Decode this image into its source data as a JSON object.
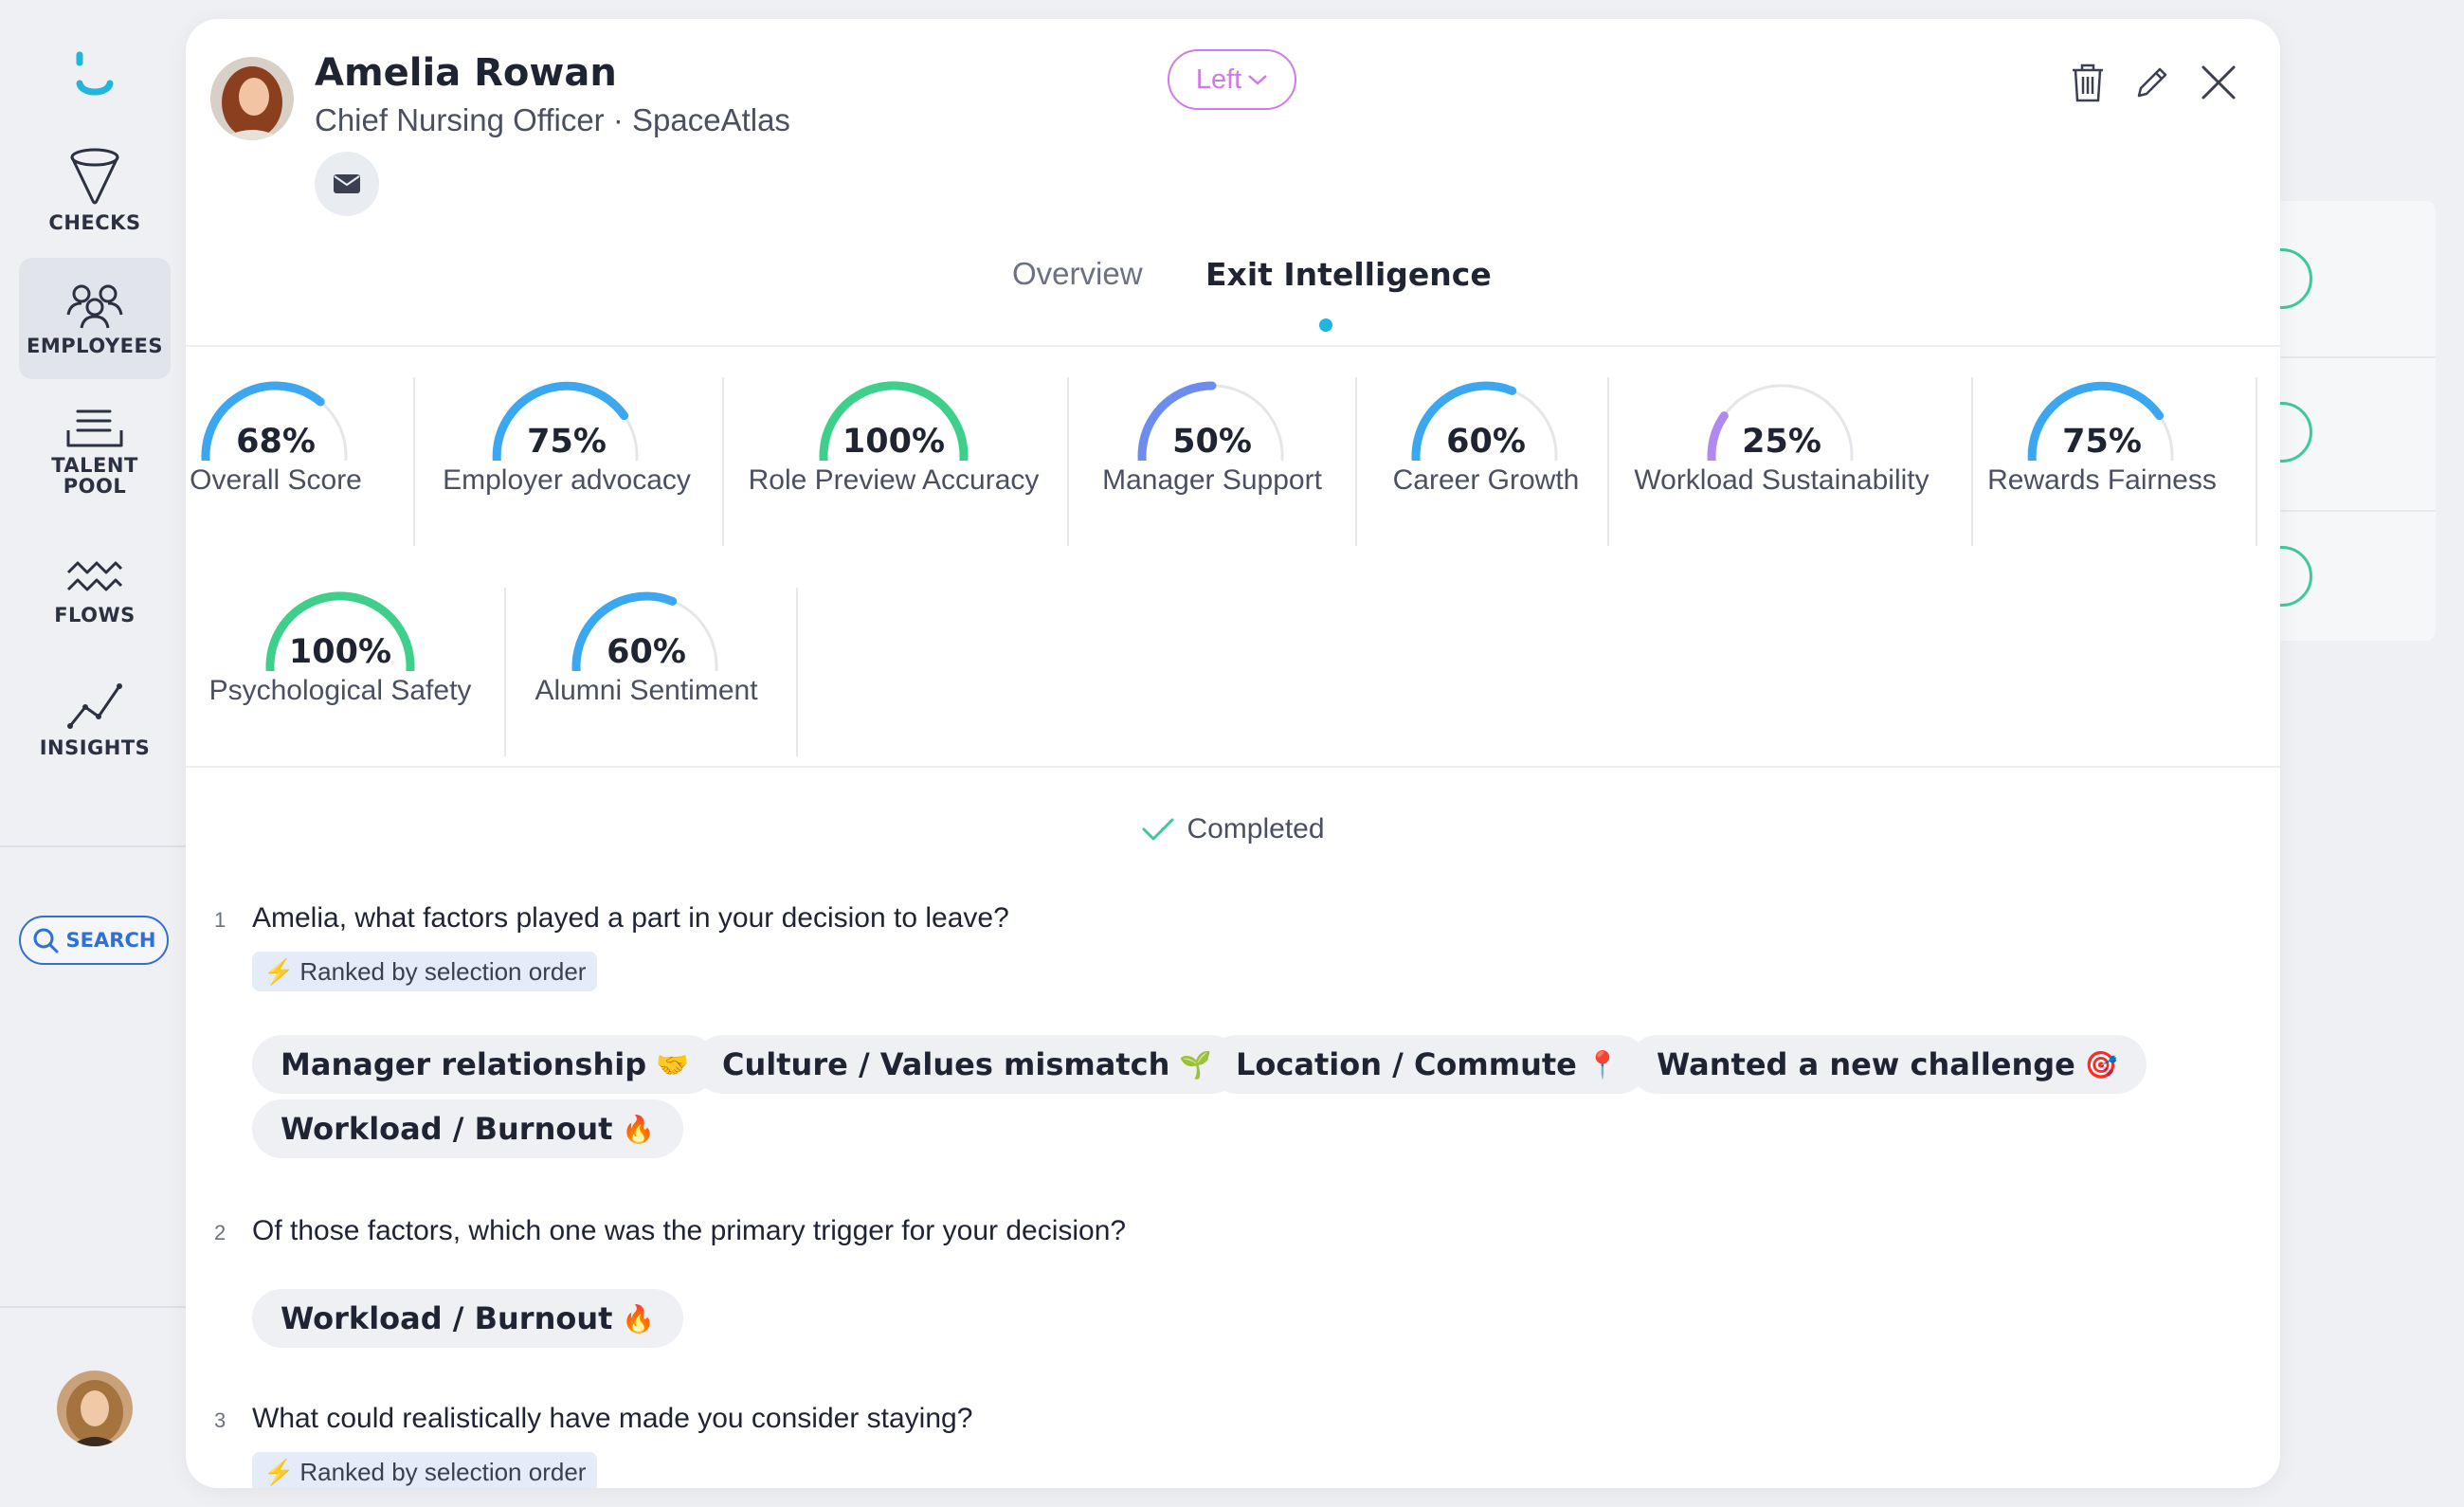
{
  "sidebar": {
    "items": [
      {
        "label": "CHECKS"
      },
      {
        "label": "EMPLOYEES"
      },
      {
        "label": "TALENT POOL"
      },
      {
        "label": "FLOWS"
      },
      {
        "label": "INSIGHTS"
      }
    ],
    "search_label": "SEARCH"
  },
  "profile": {
    "name": "Amelia Rowan",
    "subtitle": "Chief Nursing Officer · SpaceAtlas",
    "status": "Left"
  },
  "tabs": [
    {
      "label": "Overview"
    },
    {
      "label": "Exit Intelligence"
    }
  ],
  "scores": [
    {
      "value": "68%",
      "label": "Overall Score",
      "fraction": 0.68,
      "color": "#3aa7f0"
    },
    {
      "value": "75%",
      "label": "Employer advocacy",
      "fraction": 0.75,
      "color": "#3aa7f0"
    },
    {
      "value": "100%",
      "label": "Role Preview Accuracy",
      "fraction": 1.0,
      "color": "#3ed08a"
    },
    {
      "value": "50%",
      "label": "Manager Support",
      "fraction": 0.5,
      "color": "#6d8cf0"
    },
    {
      "value": "60%",
      "label": "Career Growth",
      "fraction": 0.6,
      "color": "#3aa7f0"
    },
    {
      "value": "25%",
      "label": "Workload Sustainability",
      "fraction": 0.25,
      "color": "#b08af0"
    },
    {
      "value": "75%",
      "label": "Rewards Fairness",
      "fraction": 0.75,
      "color": "#3aa7f0"
    },
    {
      "value": "100%",
      "label": "Psychological Safety",
      "fraction": 1.0,
      "color": "#3ed08a"
    },
    {
      "value": "60%",
      "label": "Alumni Sentiment",
      "fraction": 0.6,
      "color": "#3aa7f0"
    }
  ],
  "status_text": "Completed",
  "questions": [
    {
      "number": "1",
      "text": "Amelia, what factors played a part in your decision to leave?",
      "badge": "Ranked by selection order",
      "answers": [
        {
          "label": "Manager relationship",
          "emoji": "🤝"
        },
        {
          "label": "Culture / Values mismatch",
          "emoji": "🌱"
        },
        {
          "label": "Location / Commute",
          "emoji": "📍"
        },
        {
          "label": "Wanted a new challenge",
          "emoji": "🎯"
        },
        {
          "label": "Workload / Burnout",
          "emoji": "🔥"
        }
      ]
    },
    {
      "number": "2",
      "text": "Of those factors, which one was the primary trigger for your decision?",
      "answers": [
        {
          "label": "Workload / Burnout",
          "emoji": "🔥"
        }
      ]
    },
    {
      "number": "3",
      "text": "What could realistically have made you consider staying?",
      "badge": "Ranked by selection order"
    }
  ],
  "badge_icon": "⚡",
  "colors": {
    "accent": "#2f6fd6",
    "status_pill": "#d07ae8",
    "tab_dot": "#1fb7e0",
    "check": "#3ec99a"
  }
}
